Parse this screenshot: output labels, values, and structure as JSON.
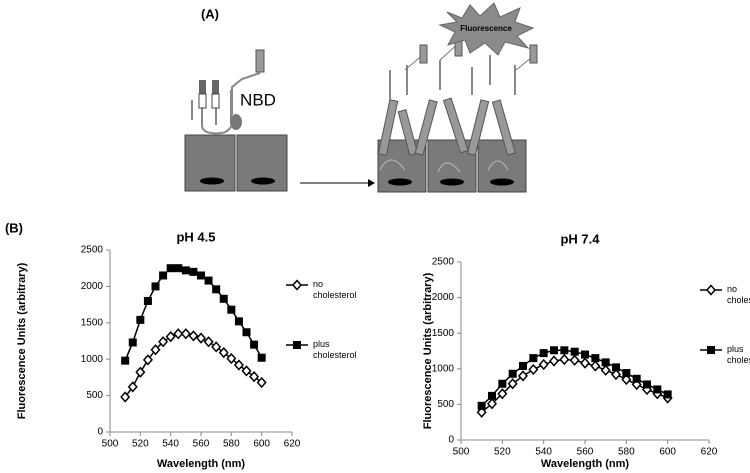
{
  "panel_labels": [
    "(A)",
    "(B)"
  ],
  "diagram": {
    "probe": "NBD",
    "signal": "Fluorescence"
  },
  "chart_data": [
    {
      "type": "line",
      "title": "pH 4.5",
      "x_label": "Wavelength (nm)",
      "y_label": "Fluorescence Units (arbitrary)",
      "x": [
        510,
        515,
        520,
        525,
        530,
        535,
        540,
        545,
        550,
        555,
        560,
        565,
        570,
        575,
        580,
        585,
        590,
        595,
        600
      ],
      "series": [
        {
          "name": "no cholesterol",
          "color": "#000000",
          "marker": "open-diamond",
          "values": [
            480,
            620,
            820,
            990,
            1130,
            1240,
            1310,
            1350,
            1350,
            1320,
            1290,
            1240,
            1170,
            1090,
            1010,
            920,
            840,
            760,
            680
          ]
        },
        {
          "name": "plus cholesterol",
          "color": "#000000",
          "marker": "filled-square",
          "values": [
            980,
            1230,
            1540,
            1800,
            2000,
            2150,
            2250,
            2250,
            2220,
            2200,
            2150,
            2080,
            1960,
            1830,
            1680,
            1520,
            1370,
            1200,
            1020
          ]
        }
      ],
      "xlim": [
        500,
        620
      ],
      "xticks": [
        500,
        520,
        540,
        560,
        580,
        600,
        620
      ],
      "ylim": [
        0,
        2500
      ],
      "yticks": [
        0,
        500,
        1000,
        1500,
        2000,
        2500
      ],
      "grid": false,
      "legend": "right"
    },
    {
      "type": "line",
      "title": "pH 7.4",
      "x_label": "Wavelength (nm)",
      "y_label": "Fluorescence Units (arbitrary)",
      "x": [
        510,
        515,
        520,
        525,
        530,
        535,
        540,
        545,
        550,
        555,
        560,
        565,
        570,
        575,
        580,
        585,
        590,
        595,
        600
      ],
      "series": [
        {
          "name": "no cholesterol",
          "color": "#000000",
          "marker": "open-diamond",
          "values": [
            390,
            510,
            650,
            790,
            900,
            990,
            1060,
            1110,
            1130,
            1120,
            1080,
            1040,
            980,
            920,
            850,
            780,
            710,
            650,
            590
          ]
        },
        {
          "name": "plus cholesterol",
          "color": "#000000",
          "marker": "filled-square",
          "values": [
            480,
            620,
            790,
            930,
            1040,
            1150,
            1220,
            1260,
            1260,
            1240,
            1200,
            1150,
            1090,
            1020,
            940,
            860,
            780,
            710,
            640
          ]
        }
      ],
      "xlim": [
        500,
        620
      ],
      "xticks": [
        500,
        520,
        540,
        560,
        580,
        600,
        620
      ],
      "ylim": [
        0,
        2500
      ],
      "yticks": [
        0,
        500,
        1000,
        1500,
        2000,
        2500
      ],
      "grid": false,
      "legend": "right"
    }
  ]
}
